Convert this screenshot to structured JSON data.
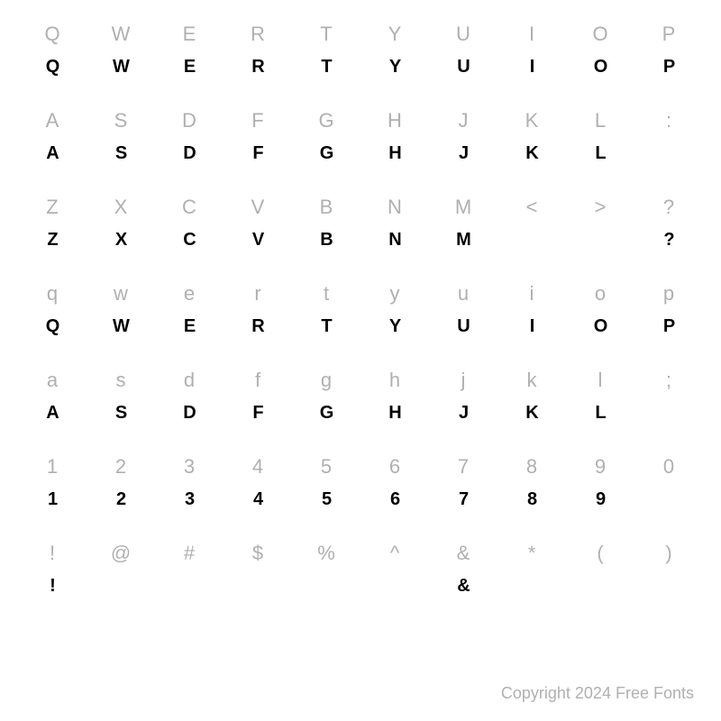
{
  "rows": [
    {
      "refs": [
        "Q",
        "W",
        "E",
        "R",
        "T",
        "Y",
        "U",
        "I",
        "O",
        "P"
      ],
      "glyphs": [
        "Q",
        "W",
        "E",
        "R",
        "T",
        "Y",
        "U",
        "I",
        "O",
        "P"
      ],
      "glyphPresent": [
        true,
        true,
        true,
        true,
        true,
        true,
        true,
        true,
        true,
        true
      ]
    },
    {
      "refs": [
        "A",
        "S",
        "D",
        "F",
        "G",
        "H",
        "J",
        "K",
        "L",
        ":"
      ],
      "glyphs": [
        "A",
        "S",
        "D",
        "F",
        "G",
        "H",
        "J",
        "K",
        "L",
        ""
      ],
      "glyphPresent": [
        true,
        true,
        true,
        true,
        true,
        true,
        true,
        true,
        true,
        false
      ]
    },
    {
      "refs": [
        "Z",
        "X",
        "C",
        "V",
        "B",
        "N",
        "M",
        "<",
        ">",
        "?"
      ],
      "glyphs": [
        "Z",
        "X",
        "C",
        "V",
        "B",
        "N",
        "M",
        "",
        "",
        "?"
      ],
      "glyphPresent": [
        true,
        true,
        true,
        true,
        true,
        true,
        true,
        false,
        false,
        true
      ]
    },
    {
      "refs": [
        "q",
        "w",
        "e",
        "r",
        "t",
        "y",
        "u",
        "i",
        "o",
        "p"
      ],
      "glyphs": [
        "Q",
        "W",
        "E",
        "R",
        "T",
        "Y",
        "U",
        "I",
        "O",
        "P"
      ],
      "glyphPresent": [
        true,
        true,
        true,
        true,
        true,
        true,
        true,
        true,
        true,
        true
      ]
    },
    {
      "refs": [
        "a",
        "s",
        "d",
        "f",
        "g",
        "h",
        "j",
        "k",
        "l",
        ";"
      ],
      "glyphs": [
        "A",
        "S",
        "D",
        "F",
        "G",
        "H",
        "J",
        "K",
        "L",
        ""
      ],
      "glyphPresent": [
        true,
        true,
        true,
        true,
        true,
        true,
        true,
        true,
        true,
        false
      ]
    },
    {
      "refs": [
        "1",
        "2",
        "3",
        "4",
        "5",
        "6",
        "7",
        "8",
        "9",
        "0"
      ],
      "glyphs": [
        "1",
        "2",
        "3",
        "4",
        "5",
        "6",
        "7",
        "8",
        "9",
        ""
      ],
      "glyphPresent": [
        true,
        true,
        true,
        true,
        true,
        true,
        true,
        true,
        true,
        false
      ]
    },
    {
      "refs": [
        "!",
        "@",
        "#",
        "$",
        "%",
        "^",
        "&",
        "*",
        "(",
        ")"
      ],
      "glyphs": [
        "!",
        "",
        "",
        "",
        "",
        "",
        "&",
        "",
        "",
        ""
      ],
      "glyphPresent": [
        true,
        false,
        false,
        false,
        false,
        false,
        true,
        false,
        false,
        false
      ]
    }
  ],
  "copyright": "Copyright 2024 Free Fonts",
  "colors": {
    "ref": "#b0b0b0",
    "glyph": "#000000",
    "background": "#ffffff"
  },
  "typography": {
    "ref_fontsize": 22,
    "glyph_fontsize": 20,
    "copyright_fontsize": 18
  }
}
